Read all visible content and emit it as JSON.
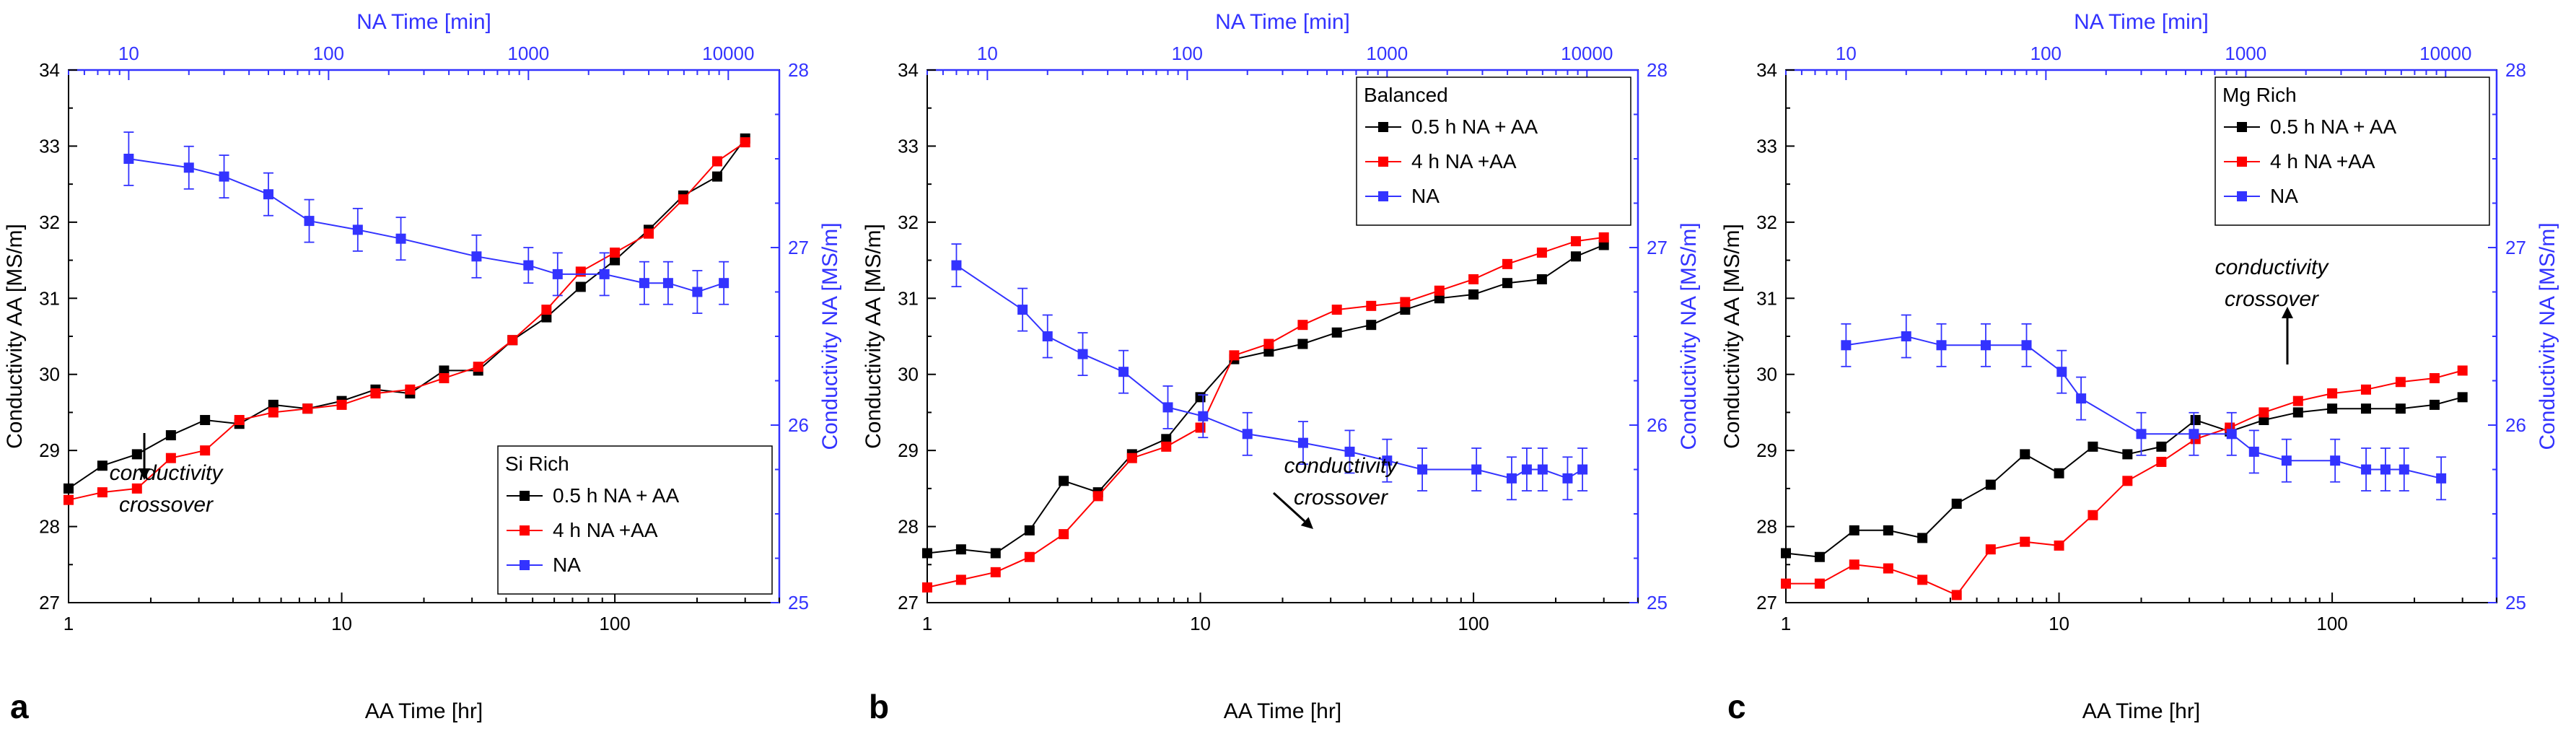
{
  "figure": {
    "colors": {
      "aa_short": "#000000",
      "aa_long": "#ff0000",
      "na": "#3333ff",
      "axis_left": "#000000",
      "axis_right": "#3333ff"
    }
  },
  "chart_data": [
    {
      "type": "line",
      "panel_label": "a",
      "legend_title": "Si Rich",
      "legend_position": "bottom-right",
      "xlabel": "AA Time [hr]",
      "x2label": "NA Time [min]",
      "ylabel": "Conductivity AA [MS/m]",
      "y2label": "Conductivity NA [MS/m]",
      "xscale": "log",
      "xlim": [
        1,
        400
      ],
      "x2scale": "log",
      "x2lim": [
        5,
        18000
      ],
      "ylim": [
        27,
        34
      ],
      "y2lim": [
        25,
        28
      ],
      "xticks": [
        1,
        10,
        100
      ],
      "xtick_labels": [
        "1",
        "10",
        "100"
      ],
      "x2ticks": [
        10,
        100,
        1000,
        10000
      ],
      "x2tick_labels": [
        "10",
        "100",
        "1000",
        "10000"
      ],
      "yticks": [
        27,
        28,
        29,
        30,
        31,
        32,
        33,
        34
      ],
      "ytick_labels": [
        "27",
        "28",
        "29",
        "30",
        "31",
        "32",
        "33",
        "34"
      ],
      "y2ticks": [
        25,
        26,
        27,
        28
      ],
      "y2tick_labels": [
        "25",
        "26",
        "27",
        "28"
      ],
      "series": [
        {
          "name": "0.5 h NA + AA",
          "axis": "left",
          "color": "#000000",
          "x": [
            1,
            1.33,
            1.78,
            2.37,
            3.16,
            4.22,
            5.62,
            7.5,
            10,
            13.3,
            17.8,
            23.7,
            31.6,
            42.2,
            56.2,
            75,
            100,
            133,
            178,
            237,
            300
          ],
          "y": [
            28.5,
            28.8,
            28.95,
            29.2,
            29.4,
            29.35,
            29.6,
            29.55,
            29.65,
            29.8,
            29.75,
            30.05,
            30.05,
            30.45,
            30.75,
            31.15,
            31.5,
            31.9,
            32.35,
            32.6,
            33.1
          ]
        },
        {
          "name": "4 h NA +AA",
          "axis": "left",
          "color": "#ff0000",
          "x": [
            1,
            1.33,
            1.78,
            2.37,
            3.16,
            4.22,
            5.62,
            7.5,
            10,
            13.3,
            17.8,
            23.7,
            31.6,
            42.2,
            56.2,
            75,
            100,
            133,
            178,
            237,
            300
          ],
          "y": [
            28.35,
            28.45,
            28.5,
            28.9,
            29.0,
            29.4,
            29.5,
            29.55,
            29.6,
            29.75,
            29.8,
            29.95,
            30.1,
            30.45,
            30.85,
            31.35,
            31.6,
            31.85,
            32.3,
            32.8,
            33.05
          ]
        },
        {
          "name": "NA",
          "axis": "right",
          "color": "#3333ff",
          "x": [
            10,
            20,
            30,
            50,
            80,
            140,
            230,
            550,
            1000,
            1400,
            2400,
            3800,
            5000,
            7000,
            9500
          ],
          "y": [
            27.5,
            27.45,
            27.4,
            27.3,
            27.15,
            27.1,
            27.05,
            26.95,
            26.9,
            26.85,
            26.85,
            26.8,
            26.8,
            26.75,
            26.8
          ],
          "err": [
            0.15,
            0.12,
            0.12,
            0.12,
            0.12,
            0.12,
            0.12,
            0.12,
            0.1,
            0.12,
            0.12,
            0.12,
            0.12,
            0.12,
            0.12
          ]
        }
      ],
      "annotations": [
        {
          "text": [
            "conductivity",
            "crossover"
          ],
          "arrow": "down"
        }
      ]
    },
    {
      "type": "line",
      "panel_label": "b",
      "legend_title": "Balanced",
      "legend_position": "top-right",
      "xlabel": "AA Time [hr]",
      "x2label": "NA Time [min]",
      "ylabel": "Conductivity AA [MS/m]",
      "y2label": "Conductivity NA [MS/m]",
      "xscale": "log",
      "xlim": [
        1,
        400
      ],
      "x2scale": "log",
      "x2lim": [
        5,
        18000
      ],
      "ylim": [
        27,
        34
      ],
      "y2lim": [
        25,
        28
      ],
      "xticks": [
        1,
        10,
        100
      ],
      "xtick_labels": [
        "1",
        "10",
        "100"
      ],
      "x2ticks": [
        10,
        100,
        1000,
        10000
      ],
      "x2tick_labels": [
        "10",
        "100",
        "1000",
        "10000"
      ],
      "yticks": [
        27,
        28,
        29,
        30,
        31,
        32,
        33,
        34
      ],
      "ytick_labels": [
        "27",
        "28",
        "29",
        "30",
        "31",
        "32",
        "33",
        "34"
      ],
      "y2ticks": [
        25,
        26,
        27,
        28
      ],
      "y2tick_labels": [
        "25",
        "26",
        "27",
        "28"
      ],
      "series": [
        {
          "name": "0.5 h NA + AA",
          "axis": "left",
          "color": "#000000",
          "x": [
            1,
            1.33,
            1.78,
            2.37,
            3.16,
            4.22,
            5.62,
            7.5,
            10,
            13.3,
            17.8,
            23.7,
            31.6,
            42.2,
            56.2,
            75,
            100,
            133,
            178,
            237,
            300
          ],
          "y": [
            27.65,
            27.7,
            27.65,
            27.95,
            28.6,
            28.45,
            28.95,
            29.15,
            29.7,
            30.2,
            30.3,
            30.4,
            30.55,
            30.65,
            30.85,
            31.0,
            31.05,
            31.2,
            31.25,
            31.55,
            31.7
          ]
        },
        {
          "name": "4 h NA +AA",
          "axis": "left",
          "color": "#ff0000",
          "x": [
            1,
            1.33,
            1.78,
            2.37,
            3.16,
            4.22,
            5.62,
            7.5,
            10,
            13.3,
            17.8,
            23.7,
            31.6,
            42.2,
            56.2,
            75,
            100,
            133,
            178,
            237,
            300
          ],
          "y": [
            27.2,
            27.3,
            27.4,
            27.6,
            27.9,
            28.4,
            28.9,
            29.05,
            29.3,
            30.25,
            30.4,
            30.65,
            30.85,
            30.9,
            30.95,
            31.1,
            31.25,
            31.45,
            31.6,
            31.75,
            31.8
          ]
        },
        {
          "name": "NA",
          "axis": "right",
          "color": "#3333ff",
          "x": [
            7,
            15,
            20,
            30,
            48,
            80,
            120,
            200,
            380,
            650,
            1000,
            1500,
            2800,
            4200,
            5000,
            6000,
            8000,
            9500
          ],
          "y": [
            26.9,
            26.65,
            26.5,
            26.4,
            26.3,
            26.1,
            26.05,
            25.95,
            25.9,
            25.85,
            25.8,
            25.75,
            25.75,
            25.7,
            25.75,
            25.75,
            25.7,
            25.75
          ],
          "err": [
            0.12,
            0.12,
            0.12,
            0.12,
            0.12,
            0.12,
            0.12,
            0.12,
            0.12,
            0.12,
            0.12,
            0.12,
            0.12,
            0.12,
            0.12,
            0.12,
            0.12,
            0.12
          ]
        }
      ],
      "annotations": [
        {
          "text": [
            "conductivity",
            "crossover"
          ],
          "arrow": "down-right"
        }
      ]
    },
    {
      "type": "line",
      "panel_label": "c",
      "legend_title": "Mg Rich",
      "legend_position": "top-right",
      "xlabel": "AA Time [hr]",
      "x2label": "NA Time [min]",
      "ylabel": "Conductivity AA [MS/m]",
      "y2label": "Conductivity NA [MS/m]",
      "xscale": "log",
      "xlim": [
        1,
        400
      ],
      "x2scale": "log",
      "x2lim": [
        5,
        18000
      ],
      "ylim": [
        27,
        34
      ],
      "y2lim": [
        25,
        28
      ],
      "xticks": [
        1,
        10,
        100
      ],
      "xtick_labels": [
        "1",
        "10",
        "100"
      ],
      "x2ticks": [
        10,
        100,
        1000,
        10000
      ],
      "x2tick_labels": [
        "10",
        "100",
        "1000",
        "10000"
      ],
      "yticks": [
        27,
        28,
        29,
        30,
        31,
        32,
        33,
        34
      ],
      "ytick_labels": [
        "27",
        "28",
        "29",
        "30",
        "31",
        "32",
        "33",
        "34"
      ],
      "y2ticks": [
        25,
        26,
        27,
        28
      ],
      "y2tick_labels": [
        "25",
        "26",
        "27",
        "28"
      ],
      "series": [
        {
          "name": "0.5 h NA + AA",
          "axis": "left",
          "color": "#000000",
          "x": [
            1,
            1.33,
            1.78,
            2.37,
            3.16,
            4.22,
            5.62,
            7.5,
            10,
            13.3,
            17.8,
            23.7,
            31.6,
            42.2,
            56.2,
            75,
            100,
            133,
            178,
            237,
            300
          ],
          "y": [
            27.65,
            27.6,
            27.95,
            27.95,
            27.85,
            28.3,
            28.55,
            28.95,
            28.7,
            29.05,
            28.95,
            29.05,
            29.4,
            29.25,
            29.4,
            29.5,
            29.55,
            29.55,
            29.55,
            29.6,
            29.7
          ]
        },
        {
          "name": "4 h NA +AA",
          "axis": "left",
          "color": "#ff0000",
          "x": [
            1,
            1.33,
            1.78,
            2.37,
            3.16,
            4.22,
            5.62,
            7.5,
            10,
            13.3,
            17.8,
            23.7,
            31.6,
            42.2,
            56.2,
            75,
            100,
            133,
            178,
            237,
            300
          ],
          "y": [
            27.25,
            27.25,
            27.5,
            27.45,
            27.3,
            27.1,
            27.7,
            27.8,
            27.75,
            28.15,
            28.6,
            28.85,
            29.15,
            29.3,
            29.5,
            29.65,
            29.75,
            29.8,
            29.9,
            29.95,
            30.05
          ]
        },
        {
          "name": "NA",
          "axis": "right",
          "color": "#3333ff",
          "x": [
            10,
            20,
            30,
            50,
            80,
            120,
            150,
            300,
            550,
            850,
            1100,
            1600,
            2800,
            4000,
            5000,
            6200,
            9500
          ],
          "y": [
            26.45,
            26.5,
            26.45,
            26.45,
            26.45,
            26.3,
            26.15,
            25.95,
            25.95,
            25.95,
            25.85,
            25.8,
            25.8,
            25.75,
            25.75,
            25.75,
            25.7
          ],
          "err": [
            0.12,
            0.12,
            0.12,
            0.12,
            0.12,
            0.12,
            0.12,
            0.12,
            0.12,
            0.12,
            0.12,
            0.12,
            0.12,
            0.12,
            0.12,
            0.12,
            0.12
          ]
        }
      ],
      "annotations": [
        {
          "text": [
            "conductivity",
            "crossover"
          ],
          "arrow": "up"
        }
      ]
    }
  ]
}
